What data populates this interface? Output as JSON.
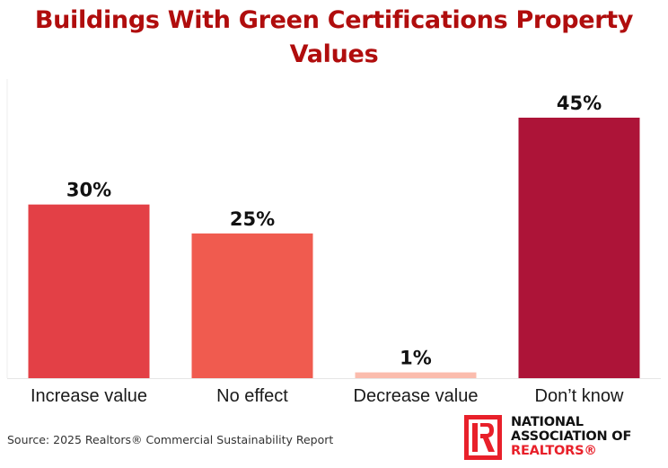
{
  "chart_data": {
    "type": "bar",
    "title": "Buildings With Green Certifications Property Values",
    "xlabel": "",
    "ylabel": "",
    "categories": [
      "Increase value",
      "No effect",
      "Decrease value",
      "Don’t know"
    ],
    "values": [
      30,
      25,
      1,
      45
    ],
    "value_labels": [
      "30%",
      "25%",
      "1%",
      "45%"
    ],
    "colors": [
      "#e34046",
      "#f05b4f",
      "#fbbcad",
      "#ad1438"
    ],
    "ylim": [
      0,
      45
    ],
    "grid": false,
    "legend": "none"
  },
  "title": {
    "line1": "Buildings With Green Certifications Property",
    "line2": "Values"
  },
  "footer": {
    "source": "Source: 2025 Realtors® Commercial Sustainability Report",
    "logo": {
      "line1": "NATIONAL",
      "line2": "ASSOCIATION OF",
      "line3": "REALTORS®",
      "brand_color": "#e8202a"
    }
  }
}
